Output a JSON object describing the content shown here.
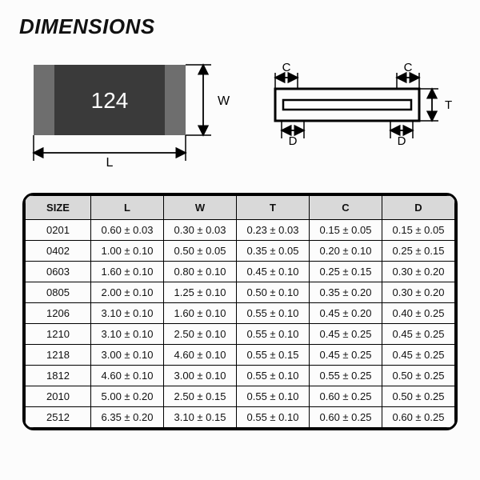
{
  "title": "DIMENSIONS",
  "diagram": {
    "chip_label": "124",
    "dim_W": "W",
    "dim_L": "L",
    "dim_C": "C",
    "dim_T": "T",
    "dim_D": "D",
    "colors": {
      "chip_body": "#3a3a3a",
      "chip_end": "#6e6e6e",
      "chip_label_color": "#ffffff",
      "line": "#000000",
      "background": "#fcfcfc"
    },
    "font": {
      "chip_label_size": 28,
      "dim_label_size": 16
    }
  },
  "table": {
    "columns": [
      "SIZE",
      "L",
      "W",
      "T",
      "C",
      "D"
    ],
    "header_bg": "#d9d9d9",
    "border_color": "#000000",
    "rows": [
      [
        "0201",
        "0.60 ± 0.03",
        "0.30 ± 0.03",
        "0.23 ± 0.03",
        "0.15 ± 0.05",
        "0.15 ± 0.05"
      ],
      [
        "0402",
        "1.00 ± 0.10",
        "0.50 ± 0.05",
        "0.35 ± 0.05",
        "0.20 ± 0.10",
        "0.25 ± 0.15"
      ],
      [
        "0603",
        "1.60 ± 0.10",
        "0.80 ± 0.10",
        "0.45 ± 0.10",
        "0.25 ± 0.15",
        "0.30 ± 0.20"
      ],
      [
        "0805",
        "2.00 ± 0.10",
        "1.25 ± 0.10",
        "0.50 ± 0.10",
        "0.35 ± 0.20",
        "0.30 ± 0.20"
      ],
      [
        "1206",
        "3.10 ± 0.10",
        "1.60 ± 0.10",
        "0.55 ± 0.10",
        "0.45 ± 0.20",
        "0.40 ± 0.25"
      ],
      [
        "1210",
        "3.10 ± 0.10",
        "2.50 ± 0.10",
        "0.55 ± 0.10",
        "0.45 ± 0.25",
        "0.45 ± 0.25"
      ],
      [
        "1218",
        "3.00 ± 0.10",
        "4.60 ± 0.10",
        "0.55 ± 0.15",
        "0.45 ± 0.25",
        "0.45 ± 0.25"
      ],
      [
        "1812",
        "4.60 ± 0.10",
        "3.00 ± 0.10",
        "0.55 ± 0.10",
        "0.55 ± 0.25",
        "0.50 ± 0.25"
      ],
      [
        "2010",
        "5.00 ± 0.20",
        "2.50 ± 0.15",
        "0.55 ± 0.10",
        "0.60 ± 0.25",
        "0.50 ± 0.25"
      ],
      [
        "2512",
        "6.35 ± 0.20",
        "3.10 ± 0.15",
        "0.55 ± 0.10",
        "0.60 ± 0.25",
        "0.60 ± 0.25"
      ]
    ]
  }
}
